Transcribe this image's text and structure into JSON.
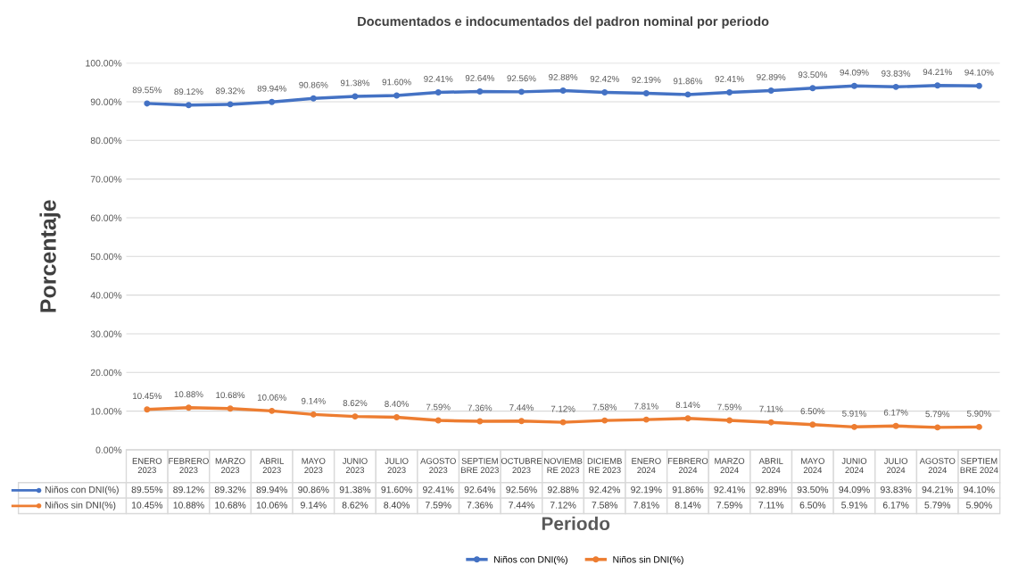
{
  "chart_data": {
    "type": "line",
    "title": "Documentados e indocumentados del padron nominal por periodo",
    "xlabel": "Periodo",
    "ylabel": "Porcentaje",
    "categories": [
      "ENERO 2023",
      "FEBRERO 2023",
      "MARZO 2023",
      "ABRIL 2023",
      "MAYO 2023",
      "JUNIO 2023",
      "JULIO 2023",
      "AGOSTO 2023",
      "SEPTIEMBRE 2023",
      "OCTUBRE 2023",
      "NOVIEMBRE 2023",
      "DICIEMBRE 2023",
      "ENERO 2024",
      "FEBRERO 2024",
      "MARZO 2024",
      "ABRIL 2024",
      "MAYO 2024",
      "JUNIO 2024",
      "JULIO 2024",
      "AGOSTO 2024",
      "SEPTIEMBRE 2024"
    ],
    "series": [
      {
        "name": "Niños con DNI(%)",
        "color": "#4472c4",
        "values": [
          89.55,
          89.12,
          89.32,
          89.94,
          90.86,
          91.38,
          91.6,
          92.41,
          92.64,
          92.56,
          92.88,
          92.42,
          92.19,
          91.86,
          92.41,
          92.89,
          93.5,
          94.09,
          93.83,
          94.21,
          94.1
        ],
        "value_labels": [
          "89.55%",
          "89.12%",
          "89.32%",
          "89.94%",
          "90.86%",
          "91.38%",
          "91.60%",
          "92.41%",
          "92.64%",
          "92.56%",
          "92.88%",
          "92.42%",
          "92.19%",
          "91.86%",
          "92.41%",
          "92.89%",
          "93.50%",
          "94.09%",
          "93.83%",
          "94.21%",
          "94.10%"
        ]
      },
      {
        "name": "Niños sin DNI(%)",
        "color": "#ed7d31",
        "values": [
          10.45,
          10.88,
          10.68,
          10.06,
          9.14,
          8.62,
          8.4,
          7.59,
          7.36,
          7.44,
          7.12,
          7.58,
          7.81,
          8.14,
          7.59,
          7.11,
          6.5,
          5.91,
          6.17,
          5.79,
          5.9
        ],
        "value_labels": [
          "10.45%",
          "10.88%",
          "10.68%",
          "10.06%",
          "9.14%",
          "8.62%",
          "8.40%",
          "7.59%",
          "7.36%",
          "7.44%",
          "7.12%",
          "7.58%",
          "7.81%",
          "8.14%",
          "7.59%",
          "7.11%",
          "6.50%",
          "5.91%",
          "6.17%",
          "5.79%",
          "5.90%"
        ]
      }
    ],
    "ylim": [
      0,
      100
    ],
    "yticks": [
      {
        "value": 0,
        "label": "0.00%"
      },
      {
        "value": 10,
        "label": "10.00%"
      },
      {
        "value": 20,
        "label": "20.00%"
      },
      {
        "value": 30,
        "label": "30.00%"
      },
      {
        "value": 40,
        "label": "40.00%"
      },
      {
        "value": 50,
        "label": "50.00%"
      },
      {
        "value": 60,
        "label": "60.00%"
      },
      {
        "value": 70,
        "label": "70.00%"
      },
      {
        "value": 80,
        "label": "80.00%"
      },
      {
        "value": 90,
        "label": "90.00%"
      },
      {
        "value": 100,
        "label": "100.00%"
      }
    ],
    "grid": "y",
    "legend": "bottom",
    "marker": "circle",
    "line_style": "solid"
  }
}
